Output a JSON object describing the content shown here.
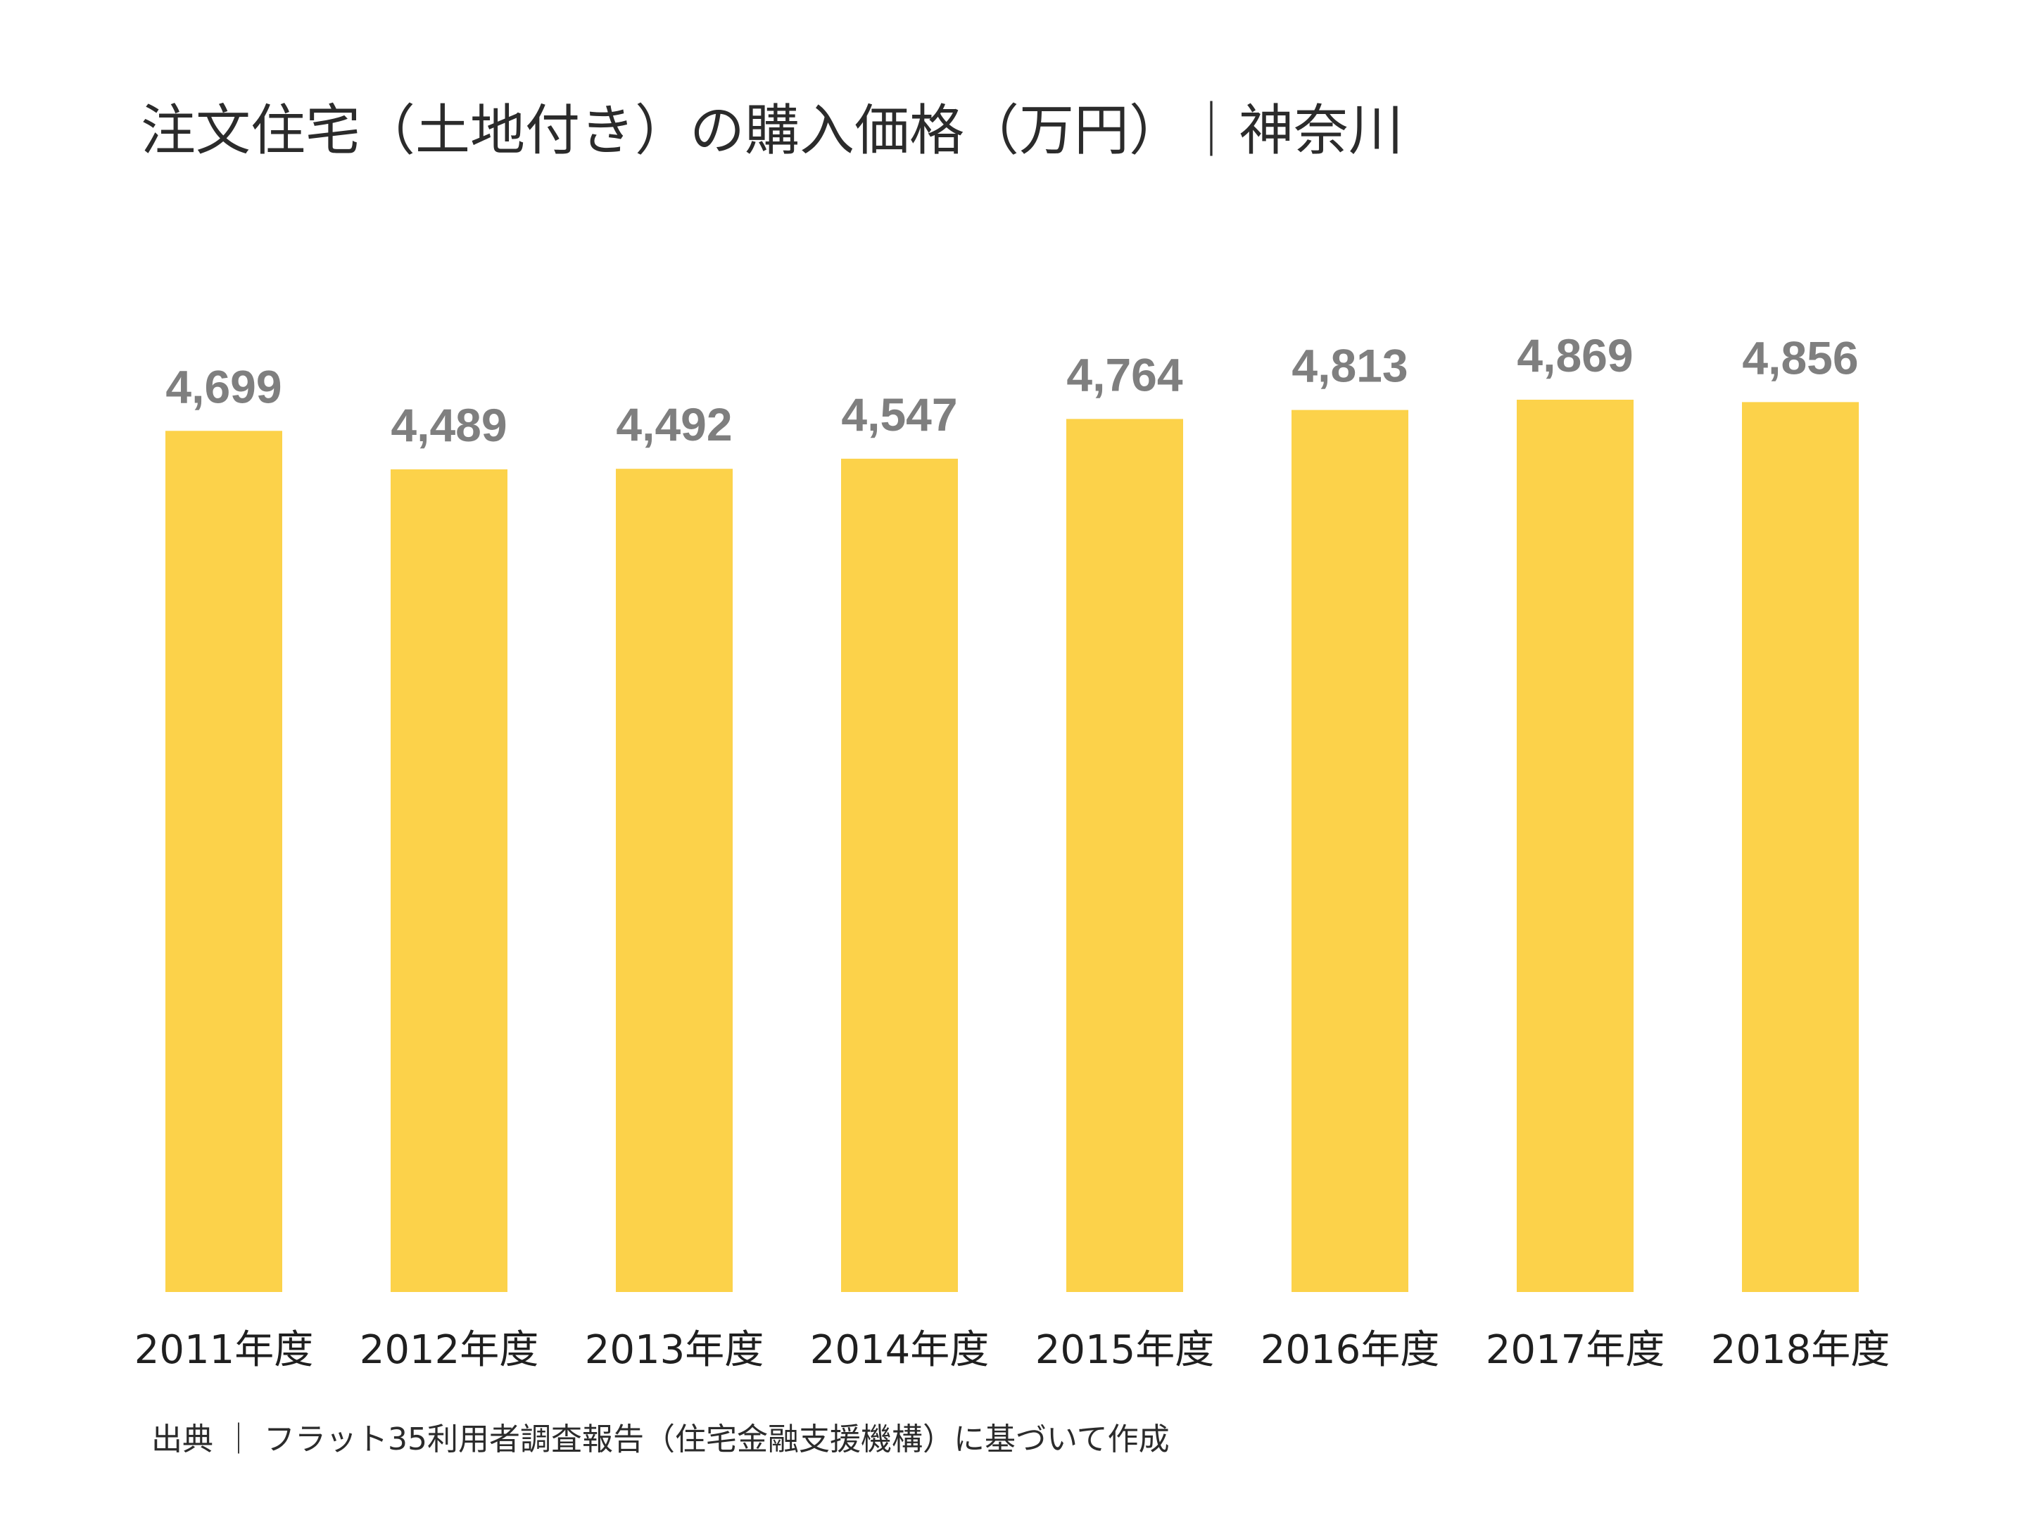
{
  "chart_data": {
    "type": "bar",
    "title": "注文住宅（土地付き）の購入価格（万円）｜神奈川",
    "categories": [
      "2011年度",
      "2012年度",
      "2013年度",
      "2014年度",
      "2015年度",
      "2016年度",
      "2017年度",
      "2018年度"
    ],
    "values": [
      4699,
      4489,
      4492,
      4547,
      4764,
      4813,
      4869,
      4856
    ],
    "value_labels": [
      "4,699",
      "4,489",
      "4,492",
      "4,547",
      "4,764",
      "4,813",
      "4,869",
      "4,856"
    ],
    "xlabel": "",
    "ylabel": "",
    "ylim": [
      0,
      4869
    ],
    "grid": false,
    "legend": "none",
    "bar_color": "#fcd24a",
    "value_label_color": "#7f7f7f"
  },
  "source": "出典 ｜ フラット35利用者調査報告（住宅金融支援機構）に基づいて作成"
}
